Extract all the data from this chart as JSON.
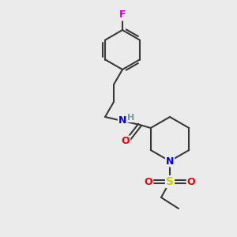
{
  "background_color": "#ebebeb",
  "atom_colors": {
    "C": "#3a3a3a",
    "N": "#0000ee",
    "O": "#ee0000",
    "S": "#cccc00",
    "F": "#cc00cc",
    "H": "#7a9a9a"
  },
  "bond_color": "#3a3a3a",
  "bond_lw": 1.5,
  "figsize": [
    3.0,
    3.0
  ],
  "dpi": 100
}
